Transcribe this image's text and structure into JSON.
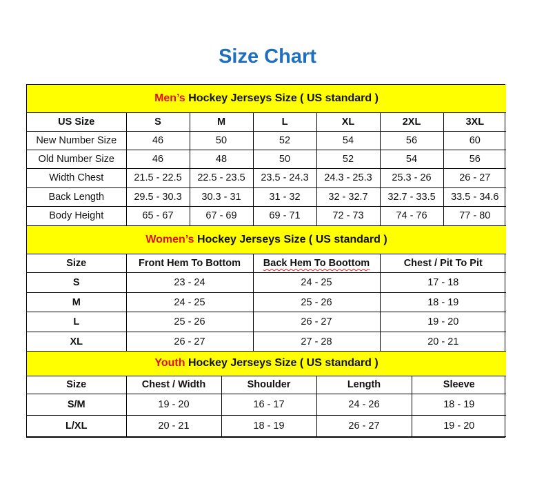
{
  "title": "Size Chart",
  "colors": {
    "title": "#1f6fc0",
    "band": "#ffff00",
    "highlight": "#e01010"
  },
  "mens": {
    "highlight": "Men’s",
    "rest": " Hockey Jerseys Size ( US standard )",
    "headers": [
      "US Size",
      "S",
      "M",
      "L",
      "XL",
      "2XL",
      "3XL"
    ],
    "rows": [
      [
        "New Number Size",
        "46",
        "50",
        "52",
        "54",
        "56",
        "60"
      ],
      [
        "Old Number Size",
        "46",
        "48",
        "50",
        "52",
        "54",
        "56"
      ],
      [
        "Width Chest",
        "21.5 - 22.5",
        "22.5 - 23.5",
        "23.5 - 24.3",
        "24.3 - 25.3",
        "25.3 - 26",
        "26 - 27"
      ],
      [
        "Back Length",
        "29.5 - 30.3",
        "30.3 - 31",
        "31 - 32",
        "32 - 32.7",
        "32.7 - 33.5",
        "33.5 - 34.6"
      ],
      [
        "Body Height",
        "65 - 67",
        "67 - 69",
        "69 - 71",
        "72 - 73",
        "74 - 76",
        "77 - 80"
      ]
    ]
  },
  "womens": {
    "highlight": "Women’s",
    "rest": " Hockey Jerseys Size ( US standard )",
    "headers": [
      "Size",
      "Front Hem To Bottom",
      "Back Hem To Boottom",
      "Chest / Pit To Pit"
    ],
    "rows": [
      [
        "S",
        "23 - 24",
        "24 - 25",
        "17 - 18"
      ],
      [
        "M",
        "24 - 25",
        "25 - 26",
        "18 - 19"
      ],
      [
        "L",
        "25 - 26",
        "26 - 27",
        "19 - 20"
      ],
      [
        "XL",
        "26 - 27",
        "27 - 28",
        "20 - 21"
      ]
    ]
  },
  "youth": {
    "highlight": "Youth",
    "rest": " Hockey Jerseys Size ( US standard )",
    "headers": [
      "Size",
      "Chest / Width",
      "Shoulder",
      "Length",
      "Sleeve"
    ],
    "rows": [
      [
        "S/M",
        "19 - 20",
        "16 - 17",
        "24 - 26",
        "18 - 19"
      ],
      [
        "L/XL",
        "20 - 21",
        "18 - 19",
        "26 - 27",
        "19 - 20"
      ]
    ]
  }
}
